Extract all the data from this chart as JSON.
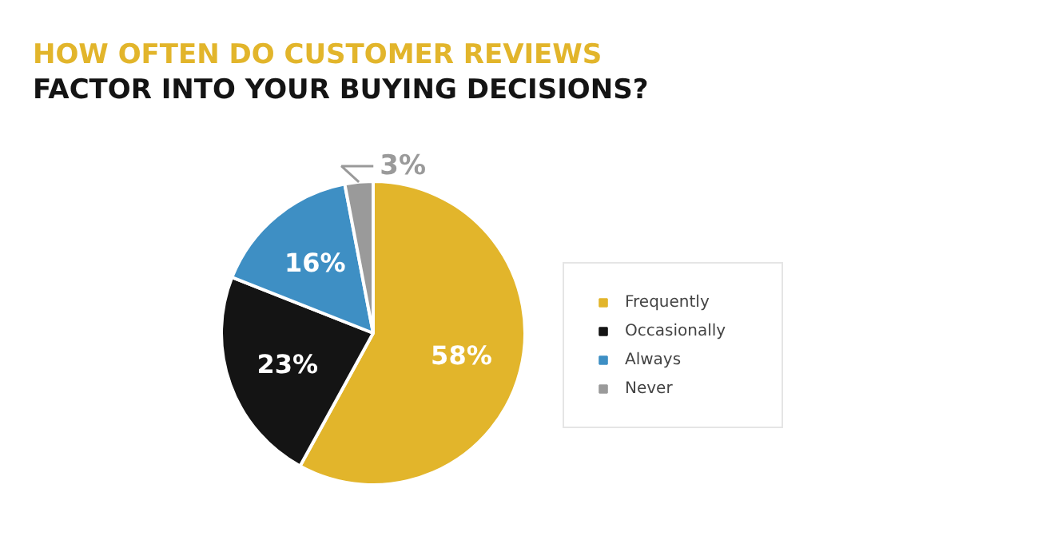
{
  "chart_data": {
    "type": "pie",
    "title": "HOW OFTEN DO CUSTOMER REVIEWS\nFACTOR INTO YOUR BUYING DECISIONS?",
    "categories": [
      "Frequently",
      "Occasionally",
      "Always",
      "Never"
    ],
    "values": [
      58,
      23,
      16,
      3
    ],
    "colors": [
      "#e2b52b",
      "#141414",
      "#3e8fc4",
      "#9a9a9a"
    ],
    "value_labels": [
      "58%",
      "23%",
      "16%",
      "3%"
    ],
    "legend": "right"
  }
}
